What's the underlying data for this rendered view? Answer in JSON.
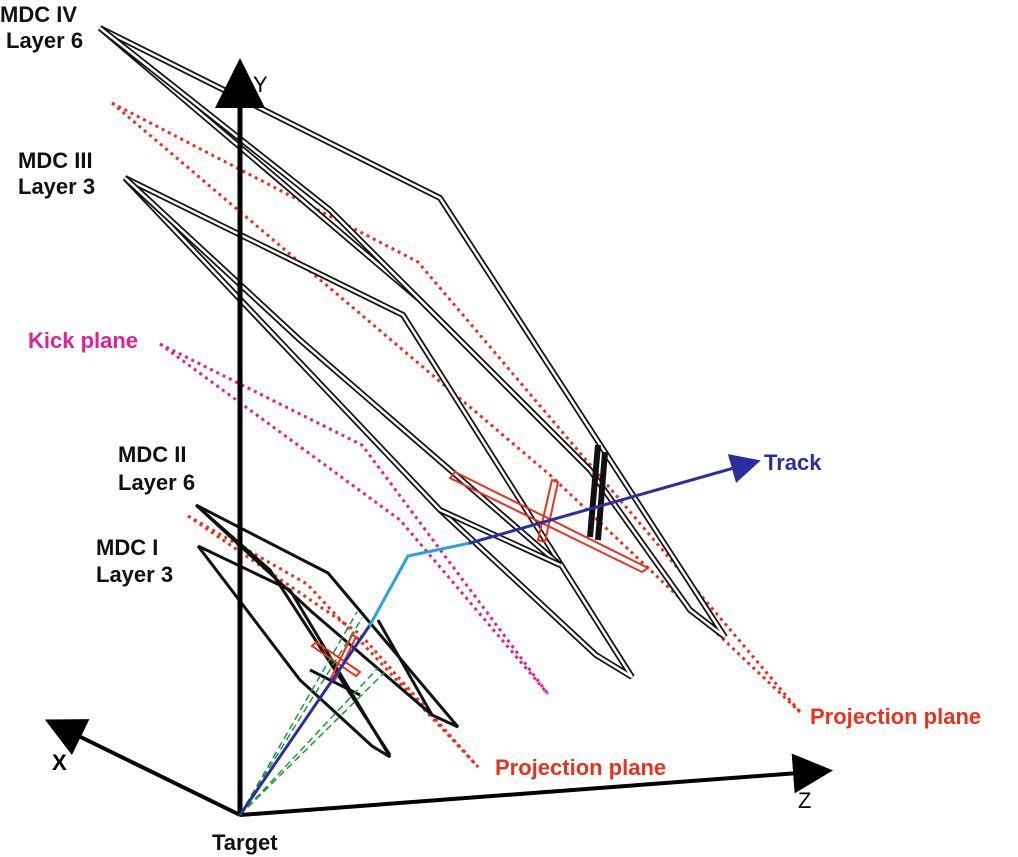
{
  "labels": {
    "mdc4_line1": "MDC IV",
    "mdc4_line2": "Layer 6",
    "mdc3_line1": "MDC III",
    "mdc3_line2": "Layer 3",
    "kick_plane": "Kick plane",
    "mdc2_line1": "MDC II",
    "mdc2_line2": "Layer 6",
    "mdc1_line1": "MDC I",
    "mdc1_line2": "Layer 3",
    "track": "Track",
    "projection_plane_outer": "Projection plane",
    "projection_plane_inner": "Projection plane",
    "target": "Target"
  },
  "axes": {
    "x": "X",
    "y": "Y",
    "z": "Z"
  },
  "colors": {
    "chamber": "#111111",
    "projection": "#e8321e",
    "kick": "#e0209a",
    "track_outer": "#2b2f9e",
    "track_mid": "#27a3dd",
    "hit_lines": "#1a9a3c",
    "label_black": "#111111",
    "label_red": "#e8321e",
    "label_magenta": "#e0209a",
    "label_blue": "#2b2f9e"
  }
}
